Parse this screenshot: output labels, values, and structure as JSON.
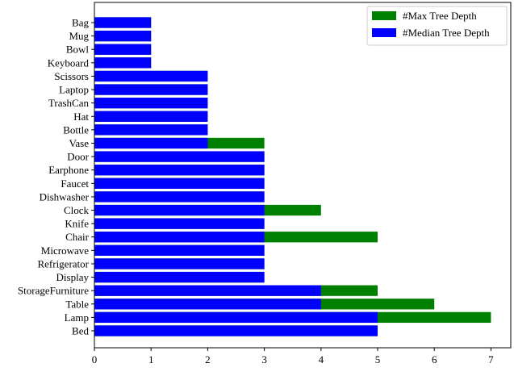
{
  "chart_data": {
    "type": "bar",
    "orientation": "horizontal",
    "stacked": "overlay",
    "categories": [
      "Bed",
      "Lamp",
      "Table",
      "StorageFurniture",
      "Display",
      "Refrigerator",
      "Microwave",
      "Chair",
      "Knife",
      "Clock",
      "Dishwasher",
      "Faucet",
      "Earphone",
      "Door",
      "Vase",
      "Bottle",
      "Hat",
      "TrashCan",
      "Laptop",
      "Scissors",
      "Keyboard",
      "Bowl",
      "Mug",
      "Bag"
    ],
    "series": [
      {
        "name": "#Max Tree Depth",
        "color": "#008000",
        "values": [
          5,
          7,
          6,
          5,
          3,
          3,
          3,
          5,
          3,
          4,
          3,
          3,
          3,
          3,
          3,
          2,
          2,
          2,
          2,
          2,
          1,
          1,
          1,
          1
        ]
      },
      {
        "name": "#Median Tree Depth",
        "color": "#0000ff",
        "values": [
          5,
          5,
          4,
          4,
          3,
          3,
          3,
          3,
          3,
          3,
          3,
          3,
          3,
          3,
          2,
          2,
          2,
          2,
          2,
          2,
          1,
          1,
          1,
          1
        ]
      }
    ],
    "xlim": [
      0,
      7.35
    ],
    "xticks": [
      "0",
      "1",
      "2",
      "3",
      "4",
      "5",
      "6",
      "7"
    ],
    "xlabel": "",
    "ylabel": "",
    "title": "",
    "legend_position": "upper-right",
    "grid": false
  }
}
